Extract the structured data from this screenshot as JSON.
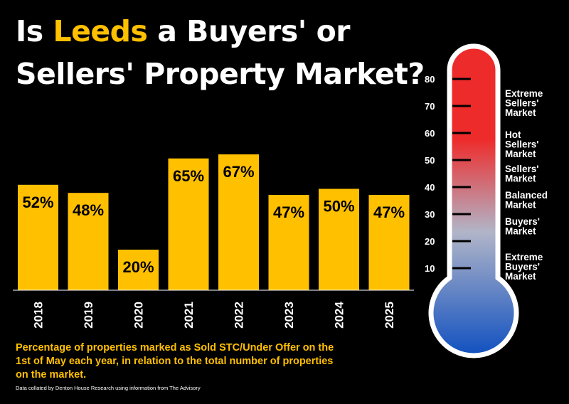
{
  "header": {
    "title_part1": "Is ",
    "title_highlight": "Leeds",
    "title_part2": " a Buyers' or",
    "title_line2": "Sellers' Property Market?"
  },
  "chart_data": {
    "type": "bar",
    "categories": [
      "2018",
      "2019",
      "2020",
      "2021",
      "2022",
      "2023",
      "2024",
      "2025"
    ],
    "values": [
      52,
      48,
      20,
      65,
      67,
      47,
      50,
      47
    ],
    "data_labels": [
      "52%",
      "48%",
      "20%",
      "65%",
      "67%",
      "47%",
      "50%",
      "47%"
    ],
    "ylim": [
      0,
      100
    ],
    "grid": false,
    "bar_color": "#ffc000"
  },
  "thermometer": {
    "ticks": [
      "80",
      "70",
      "60",
      "50",
      "40",
      "30",
      "20",
      "10"
    ],
    "tick_values": [
      80,
      70,
      60,
      50,
      40,
      30,
      20,
      10
    ],
    "zones": [
      {
        "lines": [
          "Extreme",
          "Sellers'",
          "Market"
        ]
      },
      {
        "lines": [
          "Hot",
          "Sellers'",
          "Market"
        ]
      },
      {
        "lines": [
          "Sellers'",
          "Market"
        ]
      },
      {
        "lines": [
          "Balanced",
          "Market"
        ]
      },
      {
        "lines": [
          "Buyers'",
          "Market"
        ]
      },
      {
        "lines": [
          "Extreme",
          "Buyers'",
          "Market"
        ]
      }
    ],
    "colors": {
      "top": "#ee2b2b",
      "mid": "#b1b5c8",
      "bottom": "#1050c0",
      "outline": "#ffffff"
    }
  },
  "footer": {
    "caption": "Percentage of properties marked as Sold STC/Under Offer on the 1st of May each year, in relation to the total number of properties on the market.",
    "source": "Data collated by Denton House Research using information from The Advisory"
  }
}
